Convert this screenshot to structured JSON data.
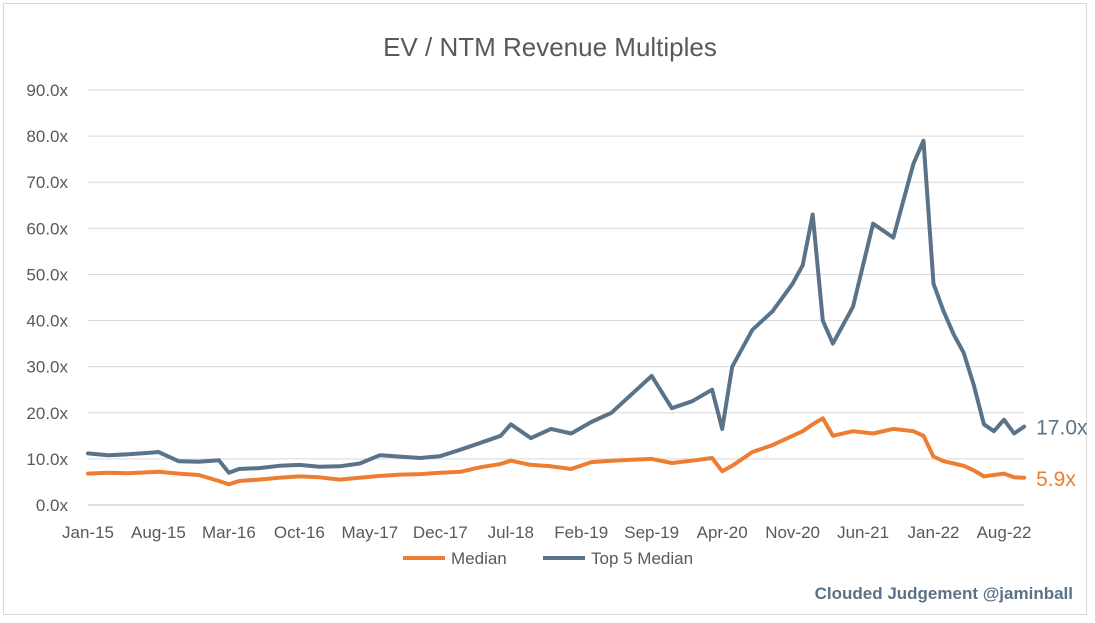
{
  "chart_data": {
    "type": "line",
    "title": "EV / NTM Revenue Multiples",
    "xlabel": "",
    "ylabel": "",
    "ylim": [
      0,
      90
    ],
    "y_ticks": [
      "0.0x",
      "10.0x",
      "20.0x",
      "30.0x",
      "40.0x",
      "50.0x",
      "60.0x",
      "70.0x",
      "80.0x",
      "90.0x"
    ],
    "x_ticks": [
      "Jan-15",
      "Aug-15",
      "Mar-16",
      "Oct-16",
      "May-17",
      "Dec-17",
      "Jul-18",
      "Feb-19",
      "Sep-19",
      "Apr-20",
      "Nov-20",
      "Jun-21",
      "Jan-22",
      "Aug-22"
    ],
    "grid": true,
    "legend_position": "bottom",
    "series": [
      {
        "name": "Median",
        "color": "#ed7d31",
        "end_label": "5.9x",
        "x": [
          "Jan-15",
          "Mar-15",
          "May-15",
          "Jul-15",
          "Aug-15",
          "Oct-15",
          "Dec-15",
          "Feb-16",
          "Mar-16",
          "Apr-16",
          "Jun-16",
          "Aug-16",
          "Oct-16",
          "Dec-16",
          "Feb-17",
          "Apr-17",
          "Jun-17",
          "Aug-17",
          "Oct-17",
          "Dec-17",
          "Feb-18",
          "Apr-18",
          "Jun-18",
          "Jul-18",
          "Sep-18",
          "Nov-18",
          "Jan-19",
          "Mar-19",
          "May-19",
          "Jul-19",
          "Sep-19",
          "Nov-19",
          "Jan-20",
          "Mar-20",
          "Apr-20",
          "May-20",
          "Jul-20",
          "Sep-20",
          "Nov-20",
          "Dec-20",
          "Jan-21",
          "Feb-21",
          "Mar-21",
          "May-21",
          "Jul-21",
          "Sep-21",
          "Nov-21",
          "Dec-21",
          "Jan-22",
          "Feb-22",
          "Mar-22",
          "Apr-22",
          "May-22",
          "Jun-22",
          "Jul-22",
          "Aug-22",
          "Sep-22",
          "Oct-22"
        ],
        "values": [
          6.8,
          7.0,
          6.9,
          7.1,
          7.2,
          6.8,
          6.5,
          5.2,
          4.5,
          5.2,
          5.5,
          5.9,
          6.2,
          6.0,
          5.5,
          5.9,
          6.3,
          6.6,
          6.7,
          7.0,
          7.2,
          8.2,
          8.9,
          9.6,
          8.7,
          8.4,
          7.8,
          9.3,
          9.6,
          9.8,
          10.0,
          9.1,
          9.6,
          10.2,
          7.3,
          8.5,
          11.5,
          13.0,
          15.0,
          16.0,
          17.5,
          18.8,
          15.0,
          16.0,
          15.5,
          16.5,
          16.0,
          15.0,
          10.5,
          9.5,
          9.0,
          8.5,
          7.5,
          6.2,
          6.5,
          6.8,
          6.0,
          5.9
        ]
      },
      {
        "name": "Top 5 Median",
        "color": "#5b7388",
        "end_label": "17.0x",
        "x": [
          "Jan-15",
          "Mar-15",
          "May-15",
          "Jul-15",
          "Aug-15",
          "Oct-15",
          "Dec-15",
          "Feb-16",
          "Mar-16",
          "Apr-16",
          "Jun-16",
          "Aug-16",
          "Oct-16",
          "Dec-16",
          "Feb-17",
          "Apr-17",
          "Jun-17",
          "Aug-17",
          "Oct-17",
          "Dec-17",
          "Feb-18",
          "Apr-18",
          "Jun-18",
          "Jul-18",
          "Sep-18",
          "Nov-18",
          "Jan-19",
          "Mar-19",
          "May-19",
          "Jul-19",
          "Sep-19",
          "Nov-19",
          "Jan-20",
          "Mar-20",
          "Apr-20",
          "May-20",
          "Jul-20",
          "Sep-20",
          "Nov-20",
          "Dec-20",
          "Jan-21",
          "Feb-21",
          "Mar-21",
          "May-21",
          "Jul-21",
          "Sep-21",
          "Nov-21",
          "Dec-21",
          "Jan-22",
          "Feb-22",
          "Mar-22",
          "Apr-22",
          "May-22",
          "Jun-22",
          "Jul-22",
          "Aug-22",
          "Sep-22",
          "Oct-22"
        ],
        "values": [
          11.2,
          10.8,
          11.0,
          11.3,
          11.5,
          9.5,
          9.4,
          9.7,
          7.0,
          7.8,
          8.0,
          8.5,
          8.7,
          8.3,
          8.4,
          9.0,
          10.8,
          10.5,
          10.2,
          10.6,
          12.0,
          13.5,
          15.0,
          17.5,
          14.5,
          16.5,
          15.5,
          18.0,
          20.0,
          24.0,
          28.0,
          21.0,
          22.5,
          25.0,
          16.5,
          30.0,
          38.0,
          42.0,
          48.0,
          52.0,
          63.0,
          40.0,
          35.0,
          43.0,
          61.0,
          58.0,
          74.0,
          79.0,
          48.0,
          42.0,
          37.0,
          33.0,
          26.0,
          17.5,
          16.0,
          18.5,
          15.5,
          17.0
        ]
      }
    ]
  },
  "credit": "Clouded Judgement @jaminball"
}
